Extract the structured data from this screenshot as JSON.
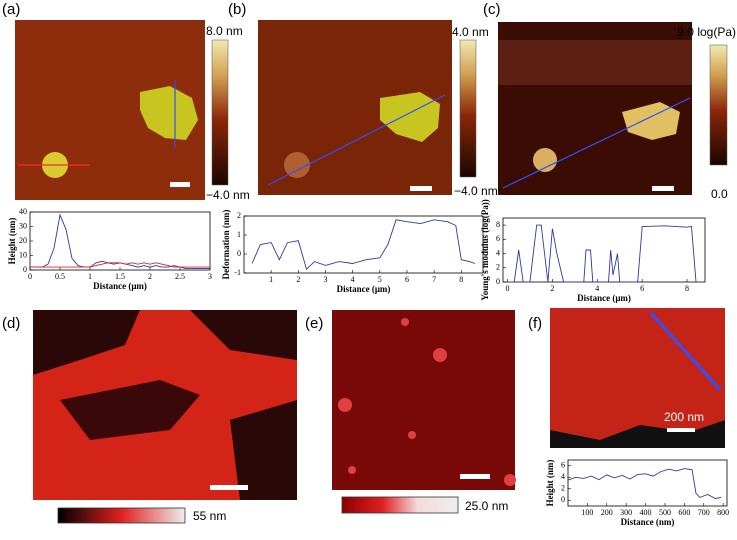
{
  "panels": [
    {
      "label": "(a)",
      "colorbar_top": "8.0 nm",
      "colorbar_bottom": "−4.0 nm"
    },
    {
      "label": "(b)",
      "colorbar_top": "4.0 nm",
      "colorbar_bottom": "−4.0 nm"
    },
    {
      "label": "(c)",
      "colorbar_top": "9.0 log(Pa)",
      "colorbar_bottom": "0.0"
    },
    {
      "label": "(d)",
      "colorbar_label": "55 nm"
    },
    {
      "label": "(e)",
      "colorbar_label": "25.0 nm"
    },
    {
      "label": "(f)",
      "scale_label": "200 nm"
    }
  ],
  "chart_data": [
    {
      "type": "line",
      "x_label": "Distance (μm)",
      "y_label": "Height (nm)",
      "xlim": [
        0,
        3
      ],
      "ylim": [
        0,
        40
      ],
      "xticks": [
        0,
        0.5,
        1,
        1.5,
        2,
        2.5,
        3
      ],
      "yticks": [
        0,
        10,
        20,
        30,
        40
      ],
      "x": [
        0,
        0.1,
        0.2,
        0.3,
        0.4,
        0.5,
        0.6,
        0.7,
        0.8,
        0.9,
        1,
        1.1,
        1.2,
        1.3,
        1.4,
        1.5,
        1.6,
        1.7,
        1.8,
        1.9,
        2,
        2.1,
        2.2,
        2.3,
        2.4,
        2.5,
        2.6,
        2.7,
        2.8,
        2.9,
        3
      ],
      "series": [
        {
          "color": "#2a3aa8",
          "values": [
            2,
            2,
            2,
            4,
            15,
            38,
            28,
            8,
            3,
            2,
            2,
            5,
            6,
            5,
            4,
            5,
            4,
            3,
            2,
            3,
            2,
            3,
            2,
            2,
            3,
            2,
            1,
            1,
            1,
            1,
            1
          ]
        },
        {
          "color": "#e0202a",
          "values": [
            2,
            2,
            2,
            2,
            2,
            2,
            2,
            2,
            2,
            2,
            2,
            3,
            4,
            5,
            5,
            5,
            4,
            5,
            4,
            5,
            4,
            5,
            4,
            3,
            2,
            2,
            2,
            2,
            2,
            2,
            2
          ]
        }
      ]
    },
    {
      "type": "line",
      "x_label": "Distance (μm)",
      "y_label": "Deformation (nm)",
      "xlim": [
        0,
        8.8
      ],
      "ylim": [
        -1,
        2
      ],
      "xticks": [
        1,
        2,
        3,
        4,
        5,
        6,
        7,
        8
      ],
      "yticks": [
        -1,
        0,
        1,
        2
      ],
      "x": [
        0.3,
        0.6,
        1,
        1.3,
        1.6,
        2,
        2.3,
        2.6,
        3,
        3.5,
        4,
        4.5,
        5,
        5.3,
        5.6,
        6,
        6.5,
        7,
        7.5,
        7.8,
        8,
        8.3,
        8.5
      ],
      "series": [
        {
          "color": "#2a3aa8",
          "values": [
            -0.5,
            0.5,
            0.6,
            -0.3,
            0.6,
            0.7,
            -0.8,
            -0.4,
            -0.6,
            -0.4,
            -0.5,
            -0.3,
            -0.2,
            0.5,
            1.8,
            1.7,
            1.6,
            1.8,
            1.7,
            1.5,
            -0.3,
            -0.4,
            -0.5
          ]
        }
      ]
    },
    {
      "type": "line",
      "x_label": "Distance (μm)",
      "y_label": "Young's modulus (log(Pa))",
      "xlim": [
        -0.2,
        8.8
      ],
      "ylim": [
        0,
        9
      ],
      "xticks": [
        0,
        2,
        4,
        6,
        8
      ],
      "yticks": [
        0,
        2,
        4,
        6,
        8
      ],
      "x": [
        0,
        0.3,
        0.5,
        0.7,
        1,
        1.3,
        1.5,
        1.8,
        2,
        2.2,
        2.5,
        3,
        3.4,
        3.5,
        3.7,
        3.8,
        4,
        4.5,
        4.6,
        4.7,
        4.9,
        5,
        5.5,
        5.8,
        6,
        7,
        8,
        8.2,
        8.4
      ],
      "series": [
        {
          "color": "#2a3aa8",
          "values": [
            0,
            0,
            4.5,
            0,
            0,
            8,
            8,
            0,
            7.5,
            4,
            0,
            0,
            0,
            4.5,
            4.5,
            0,
            0,
            0,
            4.5,
            1,
            4,
            0,
            0,
            0,
            7.8,
            7.9,
            7.7,
            7.8,
            0
          ]
        }
      ]
    },
    {
      "type": "line",
      "x_label": "Distance (nm)",
      "y_label": "Height (nm)",
      "xlim": [
        0,
        820
      ],
      "ylim": [
        -1,
        7
      ],
      "xticks": [
        100,
        200,
        300,
        400,
        500,
        600,
        700,
        800
      ],
      "yticks": [
        0,
        2,
        4,
        6
      ],
      "x": [
        0,
        40,
        80,
        120,
        160,
        200,
        240,
        280,
        320,
        360,
        400,
        440,
        480,
        520,
        560,
        600,
        640,
        660,
        680,
        720,
        760,
        790
      ],
      "series": [
        {
          "color": "#2a3aa8",
          "values": [
            3.5,
            4,
            3.8,
            4.2,
            3.6,
            4.4,
            3.9,
            4.3,
            3.7,
            4.5,
            4.6,
            4.2,
            5,
            5.4,
            5.1,
            5.5,
            5.3,
            1.2,
            0.5,
            1,
            0.3,
            0.5
          ]
        }
      ]
    }
  ]
}
